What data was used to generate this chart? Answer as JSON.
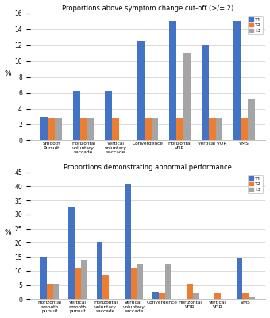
{
  "chart1": {
    "title": "Proportions above symptom change cut-off (>/= 2)",
    "categories": [
      "Smooth\nPursuit",
      "Horizontal\nvoluntary\nsaccade",
      "Vertical\nvoluntary\nsaccade",
      "Convergence",
      "Horizontal\nVOR",
      "Vertical VOR",
      "VMS"
    ],
    "T1": [
      3.0,
      6.3,
      6.3,
      12.5,
      15.0,
      12.0,
      15.0
    ],
    "T2": [
      2.8,
      2.8,
      2.8,
      2.8,
      2.8,
      2.8,
      2.8
    ],
    "T3": [
      2.8,
      2.8,
      0.0,
      2.8,
      11.0,
      2.8,
      5.3
    ],
    "ylabel": "%",
    "ylim": [
      0,
      16
    ],
    "yticks": [
      0,
      2,
      4,
      6,
      8,
      10,
      12,
      14,
      16
    ]
  },
  "chart2": {
    "title": "Proportions demonstrating abnormal performance",
    "categories": [
      "Horizontal\nsmooth\npursuit",
      "Vertical\nsmooth\npursuit",
      "Horizontal\nvoluntary\nsaccade",
      "Vertical\nvoluntary\nsaccade",
      "Convergence",
      "Horizontal\nVOR",
      "Vertical\nVOR",
      "VMS"
    ],
    "T1": [
      15.0,
      32.5,
      20.5,
      41.0,
      2.8,
      0.0,
      0.0,
      14.5
    ],
    "T2": [
      5.5,
      11.0,
      8.5,
      11.0,
      2.5,
      5.5,
      2.5,
      2.5
    ],
    "T3": [
      5.5,
      13.8,
      0.0,
      12.5,
      12.5,
      2.0,
      0.0,
      1.0
    ],
    "ylabel": "%",
    "ylim": [
      0,
      45
    ],
    "yticks": [
      0,
      5,
      10,
      15,
      20,
      25,
      30,
      35,
      40,
      45
    ]
  },
  "colors": {
    "T1": "#4472C4",
    "T2": "#ED7D31",
    "T3": "#A5A5A5"
  },
  "bar_width": 0.22,
  "background_color": "#FFFFFF"
}
